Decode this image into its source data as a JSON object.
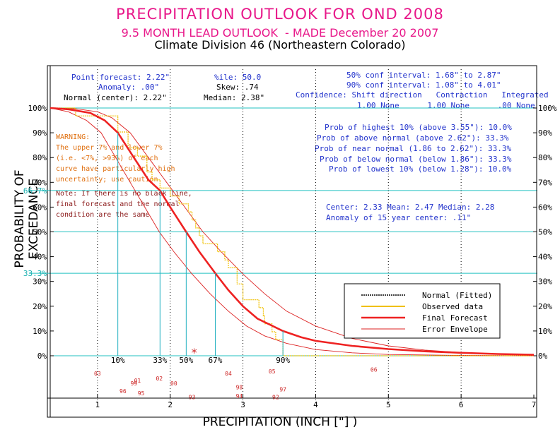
{
  "titles": {
    "line1": "PRECIPITATION OUTLOOK FOR OND 2008",
    "line2": "9.5 MONTH LEAD OUTLOOK  - MADE December 20 2007",
    "line3": "Climate Division 46 (Northeastern Colorado)"
  },
  "info_left": {
    "point_forecast": "Point forecast: 2.22\"",
    "anomaly": "Anomaly: .00\"",
    "normal_center": "Normal (center): 2.22\""
  },
  "info_mid": {
    "ile": "%ile: 50.0",
    "skew": "Skew: .74",
    "median": "Median: 2.38\""
  },
  "info_right": {
    "conf50": "50% conf interval: 1.68\" to 2.87\"",
    "conf90": "90% conf interval: 1.08\" to 4.01\"",
    "confidence_header": "Confidence: Shift direction   Contraction   Integrated",
    "confidence_values": "1.00 None      1.00 None      .00 None"
  },
  "probabilities": [
    "Prob of highest 10% (above 3.55\"): 10.0%",
    "Prob of above normal (above 2.62\"): 33.3%",
    "Prob of near normal (1.86 to 2.62\"): 33.3%",
    "Prob of below normal (below 1.86\"): 33.3%",
    "Prob of lowest 10% (below 1.28\"): 10.0%"
  ],
  "center_stats": {
    "line1": "Center: 2.33 Mean: 2.47 Median: 2.28",
    "line2": "Anomaly of 15 year center: .11\""
  },
  "warning": [
    "WARNING:",
    "The upper 7% and lower 7%",
    "(i.e. <7%, >93%) of each",
    "curve have particularly high",
    "uncertainty; use caution."
  ],
  "note": [
    "Note: If there is no black line,",
    "final forecast and the normal",
    "condition are the same"
  ],
  "axes": {
    "ylabel": "PROBABILITY OF EXCEEDANCE",
    "xlabel": "PRECIPITATION (INCH [\"] )"
  },
  "colors": {
    "title": "#e8188a",
    "normal": "#000000",
    "observed": "#f0c000",
    "forecast": "#ee2222",
    "envelope": "#dd2222",
    "grid": "#20c0c0",
    "drop": "#20b0c0",
    "text_blue": "#2233cc",
    "warning": "#e07010",
    "note": "#8b1a1a"
  },
  "chart_data": {
    "type": "line",
    "title": "PRECIPITATION OUTLOOK FOR OND 2008",
    "xlabel": "PRECIPITATION (INCH [\"] )",
    "ylabel": "PROBABILITY OF EXCEEDANCE",
    "xlim": [
      0.35,
      7
    ],
    "ylim": [
      0,
      100
    ],
    "xticks": [
      "1",
      "2",
      "3",
      "4",
      "5",
      "6",
      "7"
    ],
    "yticks": [
      "0%",
      "10%",
      "20%",
      "30%",
      "40%",
      "50%",
      "60%",
      "70%",
      "80%",
      "90%",
      "100%"
    ],
    "special_yticks": [
      "33.3%",
      "66.7%"
    ],
    "legend": [
      "Normal (Fitted)",
      "Observed data",
      "Final Forecast",
      "Error Envelope"
    ],
    "percentile_labels": [
      {
        "label": "10%",
        "x": 1.28
      },
      {
        "label": "33%",
        "x": 1.86
      },
      {
        "label": "50%",
        "x": 2.22
      },
      {
        "label": "67%",
        "x": 2.62
      },
      {
        "label": "90%",
        "x": 3.55
      }
    ],
    "series": [
      {
        "name": "Final Forecast",
        "points": [
          [
            0.35,
            100
          ],
          [
            0.6,
            99.5
          ],
          [
            0.9,
            98
          ],
          [
            1.1,
            95
          ],
          [
            1.28,
            90
          ],
          [
            1.5,
            80
          ],
          [
            1.7,
            71
          ],
          [
            1.86,
            66.7
          ],
          [
            2.0,
            60
          ],
          [
            2.22,
            50
          ],
          [
            2.4,
            42
          ],
          [
            2.62,
            33.3
          ],
          [
            2.8,
            26.5
          ],
          [
            3.0,
            20
          ],
          [
            3.2,
            15
          ],
          [
            3.55,
            10
          ],
          [
            3.8,
            7.5
          ],
          [
            4.0,
            6
          ],
          [
            4.5,
            4
          ],
          [
            5.0,
            2.7
          ],
          [
            5.5,
            1.8
          ],
          [
            6.0,
            1.2
          ],
          [
            6.5,
            0.7
          ],
          [
            7.0,
            0.4
          ]
        ]
      },
      {
        "name": "Error Envelope Upper",
        "points": [
          [
            0.35,
            100
          ],
          [
            0.7,
            99.7
          ],
          [
            1.0,
            98.5
          ],
          [
            1.2,
            96
          ],
          [
            1.45,
            90
          ],
          [
            1.7,
            80
          ],
          [
            1.95,
            70
          ],
          [
            2.2,
            60
          ],
          [
            2.45,
            50
          ],
          [
            2.7,
            42
          ],
          [
            3.0,
            33
          ],
          [
            3.3,
            25
          ],
          [
            3.6,
            18
          ],
          [
            4.0,
            12
          ],
          [
            4.5,
            7
          ],
          [
            5.0,
            4
          ],
          [
            5.5,
            2.3
          ],
          [
            6.0,
            1.3
          ],
          [
            6.5,
            0.7
          ],
          [
            7.0,
            0.3
          ]
        ]
      },
      {
        "name": "Error Envelope Lower",
        "points": [
          [
            0.35,
            100
          ],
          [
            0.6,
            98.5
          ],
          [
            0.85,
            95
          ],
          [
            1.05,
            90
          ],
          [
            1.25,
            80
          ],
          [
            1.45,
            70
          ],
          [
            1.65,
            60
          ],
          [
            1.85,
            50
          ],
          [
            2.05,
            42
          ],
          [
            2.3,
            33
          ],
          [
            2.55,
            25
          ],
          [
            2.8,
            18
          ],
          [
            3.05,
            12
          ],
          [
            3.3,
            8
          ],
          [
            3.6,
            5
          ],
          [
            4.0,
            2.5
          ],
          [
            4.5,
            1.2
          ],
          [
            5.0,
            0.5
          ],
          [
            6.0,
            0.15
          ],
          [
            7.0,
            0
          ]
        ]
      },
      {
        "name": "Observed data",
        "points": [
          [
            0.35,
            100
          ],
          [
            0.7,
            100
          ],
          [
            0.7,
            96.8
          ],
          [
            1.28,
            96.8
          ],
          [
            1.28,
            90.3
          ],
          [
            1.42,
            90.3
          ],
          [
            1.42,
            83.9
          ],
          [
            1.55,
            83.9
          ],
          [
            1.55,
            80.6
          ],
          [
            1.68,
            80.6
          ],
          [
            1.68,
            74.2
          ],
          [
            1.75,
            74.2
          ],
          [
            1.75,
            71
          ],
          [
            1.86,
            71
          ],
          [
            1.86,
            67.7
          ],
          [
            2.0,
            67.7
          ],
          [
            2.0,
            64.5
          ],
          [
            2.12,
            64.5
          ],
          [
            2.12,
            61.3
          ],
          [
            2.25,
            61.3
          ],
          [
            2.25,
            58.1
          ],
          [
            2.3,
            58.1
          ],
          [
            2.3,
            54.8
          ],
          [
            2.35,
            54.8
          ],
          [
            2.35,
            51.6
          ],
          [
            2.4,
            51.6
          ],
          [
            2.4,
            48.4
          ],
          [
            2.45,
            48.4
          ],
          [
            2.45,
            45.2
          ],
          [
            2.65,
            45.2
          ],
          [
            2.65,
            42
          ],
          [
            2.75,
            42
          ],
          [
            2.75,
            38.7
          ],
          [
            2.8,
            38.7
          ],
          [
            2.8,
            35.5
          ],
          [
            2.92,
            35.5
          ],
          [
            2.92,
            29
          ],
          [
            3.0,
            29
          ],
          [
            3.0,
            22.6
          ],
          [
            3.22,
            22.6
          ],
          [
            3.22,
            19.4
          ],
          [
            3.28,
            19.4
          ],
          [
            3.28,
            16.1
          ],
          [
            3.3,
            16.1
          ],
          [
            3.3,
            12.9
          ],
          [
            3.4,
            12.9
          ],
          [
            3.4,
            9.7
          ],
          [
            3.45,
            9.7
          ],
          [
            3.45,
            6.5
          ],
          [
            3.55,
            6.5
          ],
          [
            3.55,
            0
          ],
          [
            7.0,
            0
          ]
        ]
      }
    ],
    "year_markers": [
      {
        "year": "03",
        "x": 1.0,
        "row": 1
      },
      {
        "year": "99",
        "x": 1.5,
        "row": 2
      },
      {
        "year": "01",
        "x": 1.55,
        "row": 1.7
      },
      {
        "year": "02",
        "x": 1.85,
        "row": 1.5
      },
      {
        "year": "00",
        "x": 2.05,
        "row": 2
      },
      {
        "year": "96",
        "x": 1.35,
        "row": 2.8
      },
      {
        "year": "95",
        "x": 1.6,
        "row": 3.0
      },
      {
        "year": "04",
        "x": 2.8,
        "row": 1
      },
      {
        "year": "05",
        "x": 3.4,
        "row": 0.8
      },
      {
        "year": "06",
        "x": 4.8,
        "row": 0.6
      },
      {
        "year": "98",
        "x": 2.95,
        "row": 2.4
      },
      {
        "year": "97",
        "x": 3.55,
        "row": 2.6
      },
      {
        "year": "93",
        "x": 2.3,
        "row": 3.4
      },
      {
        "year": "94",
        "x": 2.95,
        "row": 3.3
      },
      {
        "year": "92",
        "x": 3.45,
        "row": 3.4
      }
    ],
    "center_marker": {
      "x": 2.33,
      "y": 0
    }
  }
}
